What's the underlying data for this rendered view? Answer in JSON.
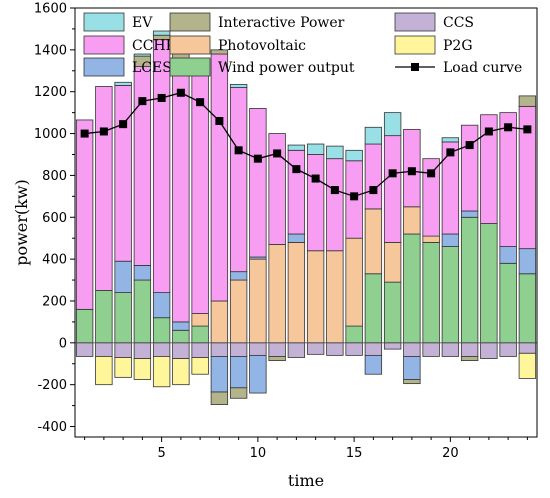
{
  "chart_data": {
    "type": "bar",
    "stacked": true,
    "xlabel": "time",
    "ylabel": "power(kw)",
    "xlim": [
      0.5,
      24.5
    ],
    "ylim": [
      -450,
      1600
    ],
    "y_ticks": [
      -400,
      -200,
      0,
      200,
      400,
      600,
      800,
      1000,
      1200,
      1400,
      1600
    ],
    "x_ticks": [
      5,
      10,
      15,
      20
    ],
    "grid": false,
    "legend_position": "top",
    "x": [
      1,
      2,
      3,
      4,
      5,
      6,
      7,
      8,
      9,
      10,
      11,
      12,
      13,
      14,
      15,
      16,
      17,
      18,
      19,
      20,
      21,
      22,
      23,
      24
    ],
    "positive_series": [
      {
        "name": "Wind power output",
        "color": "#8fcf8f",
        "values": [
          160,
          250,
          240,
          300,
          120,
          60,
          80,
          0,
          0,
          0,
          0,
          0,
          0,
          0,
          80,
          330,
          290,
          520,
          480,
          460,
          600,
          570,
          380,
          330
        ]
      },
      {
        "name": "Photovoltaic",
        "color": "#f6c79a",
        "values": [
          0,
          0,
          0,
          0,
          0,
          0,
          60,
          200,
          300,
          400,
          470,
          480,
          440,
          440,
          420,
          310,
          190,
          130,
          30,
          0,
          0,
          0,
          0,
          0
        ]
      },
      {
        "name": "LCES",
        "color": "#93b5e6",
        "values": [
          0,
          0,
          150,
          70,
          120,
          40,
          0,
          0,
          40,
          10,
          0,
          40,
          0,
          0,
          0,
          0,
          0,
          0,
          0,
          60,
          30,
          0,
          80,
          120
        ]
      },
      {
        "name": "CCHP",
        "color": "#f79df2",
        "values": [
          905,
          975,
          840,
          950,
          1210,
          1230,
          1160,
          1180,
          880,
          710,
          530,
          400,
          460,
          440,
          370,
          310,
          510,
          370,
          370,
          440,
          410,
          520,
          640,
          680
        ]
      },
      {
        "name": "Interactive Power",
        "color": "#b3b38c",
        "values": [
          0,
          0,
          0,
          50,
          20,
          120,
          40,
          20,
          0,
          0,
          0,
          0,
          0,
          0,
          0,
          0,
          0,
          0,
          0,
          0,
          0,
          0,
          0,
          50
        ]
      },
      {
        "name": "EV",
        "color": "#99e0e6",
        "values": [
          0,
          0,
          15,
          10,
          20,
          0,
          20,
          0,
          15,
          0,
          0,
          25,
          50,
          60,
          50,
          80,
          110,
          0,
          0,
          20,
          0,
          0,
          0,
          0
        ]
      }
    ],
    "negative_series": [
      {
        "name": "CCS",
        "color": "#c4b2d6",
        "values": [
          -65,
          -65,
          -70,
          -75,
          -65,
          -75,
          -70,
          -65,
          -65,
          -60,
          -65,
          -70,
          -55,
          -60,
          -60,
          -60,
          -30,
          -65,
          -65,
          -65,
          -65,
          -75,
          -65,
          -50
        ]
      },
      {
        "name": "LCES",
        "color": "#93b5e6",
        "values": [
          0,
          0,
          0,
          0,
          0,
          0,
          0,
          -170,
          -150,
          -180,
          0,
          0,
          0,
          0,
          0,
          -90,
          0,
          -110,
          0,
          0,
          0,
          0,
          0,
          0
        ]
      },
      {
        "name": "Interactive Power",
        "color": "#b3b38c",
        "values": [
          0,
          0,
          0,
          0,
          0,
          0,
          0,
          -60,
          -50,
          0,
          -20,
          0,
          0,
          0,
          0,
          0,
          0,
          -20,
          0,
          0,
          -20,
          0,
          0,
          0
        ]
      },
      {
        "name": "P2G",
        "color": "#fff59a",
        "values": [
          0,
          -135,
          -95,
          -100,
          -145,
          -125,
          -80,
          0,
          0,
          0,
          0,
          0,
          0,
          0,
          0,
          0,
          0,
          0,
          0,
          0,
          0,
          0,
          0,
          -120
        ]
      }
    ],
    "load_curve": {
      "name": "Load curve",
      "color": "#000000",
      "values": [
        1000,
        1010,
        1045,
        1155,
        1170,
        1195,
        1150,
        1060,
        920,
        880,
        905,
        830,
        785,
        730,
        700,
        730,
        810,
        820,
        810,
        910,
        945,
        1010,
        1030,
        1020
      ]
    },
    "legend": {
      "rows": [
        [
          {
            "label": "EV",
            "kind": "box",
            "color": "#99e0e6"
          },
          {
            "label": "Interactive Power",
            "kind": "box",
            "color": "#b3b38c"
          },
          {
            "label": "CCS",
            "kind": "box",
            "color": "#c4b2d6"
          }
        ],
        [
          {
            "label": "CCHP",
            "kind": "box",
            "color": "#f79df2"
          },
          {
            "label": "Photovoltaic",
            "kind": "box",
            "color": "#f6c79a"
          },
          {
            "label": "P2G",
            "kind": "box",
            "color": "#fff59a"
          }
        ],
        [
          {
            "label": "LCES",
            "kind": "box",
            "color": "#93b5e6"
          },
          {
            "label": "Wind power output",
            "kind": "box",
            "color": "#8fcf8f"
          },
          {
            "label": "Load curve",
            "kind": "line",
            "color": "#000000"
          }
        ]
      ]
    }
  }
}
